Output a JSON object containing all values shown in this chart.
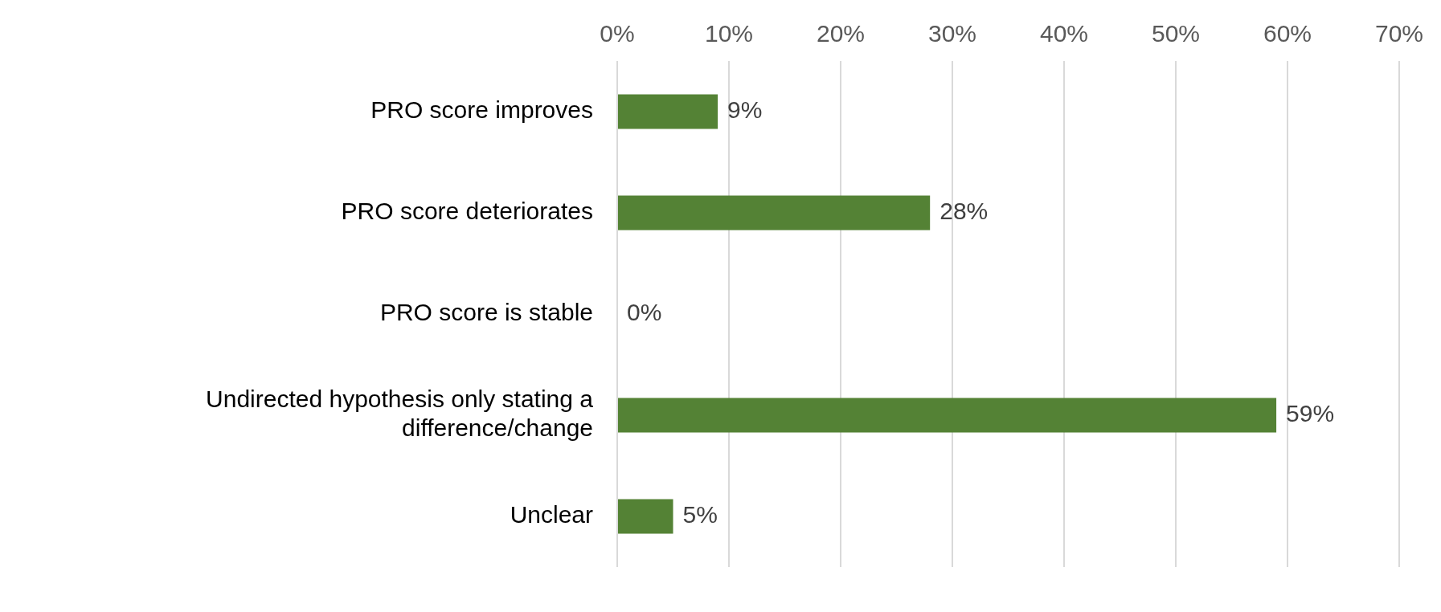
{
  "chart_data": {
    "type": "bar",
    "orientation": "horizontal",
    "categories": [
      "PRO score improves",
      "PRO score deteriorates",
      "PRO score is stable",
      "Undirected hypothesis only stating a difference/change",
      "Unclear"
    ],
    "values": [
      9,
      28,
      0,
      59,
      5
    ],
    "color": "#548235",
    "xlim": [
      0,
      70
    ],
    "xticks": [
      {
        "value": 0,
        "label": "0%"
      },
      {
        "value": 10,
        "label": "10%"
      },
      {
        "value": 20,
        "label": "20%"
      },
      {
        "value": 30,
        "label": "30%"
      },
      {
        "value": 40,
        "label": "40%"
      },
      {
        "value": 50,
        "label": "50%"
      },
      {
        "value": 60,
        "label": "60%"
      },
      {
        "value": 70,
        "label": "70%"
      }
    ],
    "value_labels": [
      "9%",
      "28%",
      "0%",
      "59%",
      "5%"
    ],
    "grid": "x",
    "legend": false
  }
}
